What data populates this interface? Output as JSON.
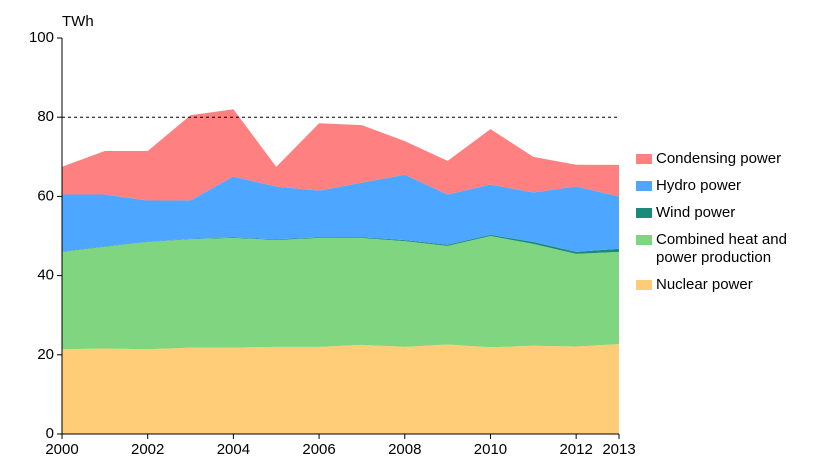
{
  "chart_data": {
    "type": "stacked_area",
    "y_axis_label": "TWh",
    "x": [
      2000,
      2001,
      2002,
      2003,
      2004,
      2005,
      2006,
      2007,
      2008,
      2009,
      2010,
      2011,
      2012,
      2013
    ],
    "xlim": [
      2000,
      2013
    ],
    "xticks": [
      2000,
      2002,
      2004,
      2006,
      2008,
      2010,
      2012,
      2013
    ],
    "ylim": [
      0,
      100
    ],
    "yticks": [
      0,
      20,
      40,
      60,
      80,
      100
    ],
    "reference_line": 80,
    "legend": "right",
    "series": [
      {
        "name": "Nuclear power",
        "color": "#ffcc77",
        "values": [
          21.4,
          21.6,
          21.4,
          21.8,
          21.8,
          22.0,
          22.0,
          22.5,
          22.0,
          22.6,
          21.9,
          22.3,
          22.1,
          22.7
        ]
      },
      {
        "name": "Combined heat and power production",
        "color": "#80d680",
        "values": [
          24.6,
          25.7,
          27.1,
          27.4,
          27.7,
          27.0,
          27.5,
          27.0,
          26.7,
          24.9,
          28.1,
          25.7,
          23.4,
          23.3
        ]
      },
      {
        "name": "Wind power",
        "color": "#1a8a7a",
        "values": [
          0.08,
          0.07,
          0.06,
          0.09,
          0.12,
          0.17,
          0.16,
          0.19,
          0.26,
          0.28,
          0.29,
          0.48,
          0.49,
          0.77
        ]
      },
      {
        "name": "Hydro power",
        "color": "#4da6ff",
        "values": [
          14.4,
          13.1,
          10.4,
          9.7,
          15.4,
          13.3,
          11.8,
          13.8,
          16.5,
          12.7,
          12.7,
          12.5,
          16.5,
          13.2
        ]
      },
      {
        "name": "Condensing power",
        "color": "#ff8080",
        "values": [
          7.0,
          11.0,
          12.5,
          21.5,
          17.0,
          5.0,
          17.0,
          14.5,
          8.5,
          8.5,
          14.0,
          9.0,
          5.5,
          8.0
        ]
      }
    ]
  }
}
